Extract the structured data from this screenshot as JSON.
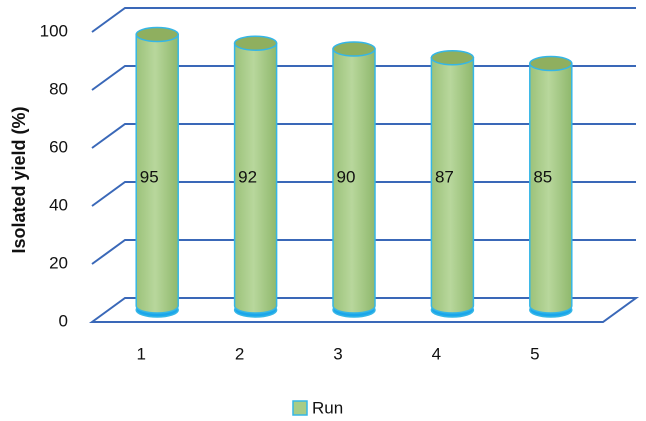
{
  "chart_data": {
    "type": "bar",
    "y_label": "Isolated yield (%)",
    "categories": [
      "1",
      "2",
      "3",
      "4",
      "5"
    ],
    "series": [
      {
        "name": "Run",
        "color": "#a8cc86",
        "values": [
          95,
          92,
          90,
          87,
          85
        ]
      }
    ],
    "ylim": [
      0,
      100
    ],
    "yticks": [
      0,
      20,
      40,
      60,
      80,
      100
    ],
    "grid": true,
    "legend": "bottom"
  }
}
